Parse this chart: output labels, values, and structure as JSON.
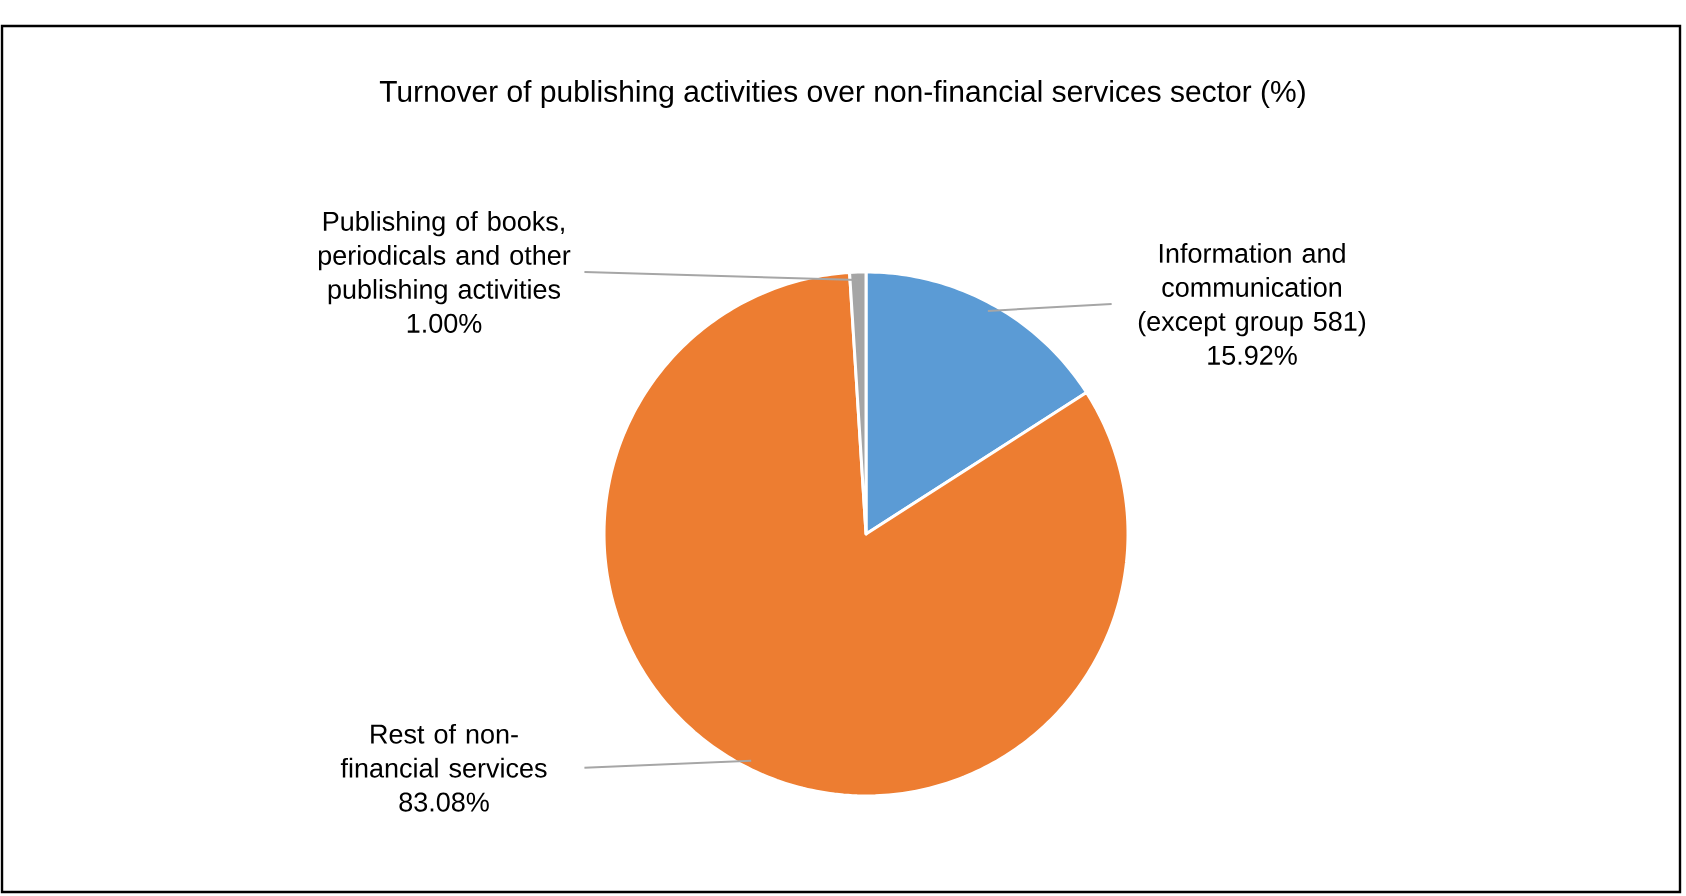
{
  "chart_data": {
    "type": "pie",
    "title": "Turnover of publishing activities over non-financial services sector (%)",
    "categories": [
      "Information and communication (except group 581)",
      "Rest of non-financial services",
      "Publishing of books, periodicals and other publishing activities"
    ],
    "values": [
      15.92,
      83.08,
      1.0
    ],
    "value_labels": [
      "15.92%",
      "83.08%",
      "1.00%"
    ],
    "colors": [
      "#5b9bd5",
      "#ed7d31",
      "#a5a5a5"
    ]
  }
}
